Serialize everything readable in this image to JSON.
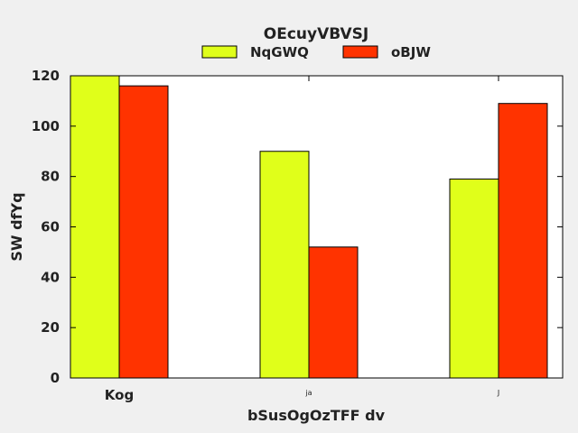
{
  "chart_data": {
    "type": "bar",
    "title": "OEcuyVBVSJ",
    "xlabel": "bSusOgOzTFF dv",
    "ylabel": "SW dfYq",
    "categories": [
      "Kog",
      "ja",
      "J"
    ],
    "series": [
      {
        "name": "NqGWQ",
        "values": [
          120,
          90,
          79
        ],
        "color": "#e0ff1a"
      },
      {
        "name": "oBJW",
        "values": [
          116,
          52,
          109
        ],
        "color": "#ff3300"
      }
    ],
    "ylim": [
      0,
      120
    ],
    "yticks": [
      0,
      20,
      40,
      60,
      80,
      100,
      120
    ],
    "grid": false,
    "legend_position": "top-center"
  }
}
